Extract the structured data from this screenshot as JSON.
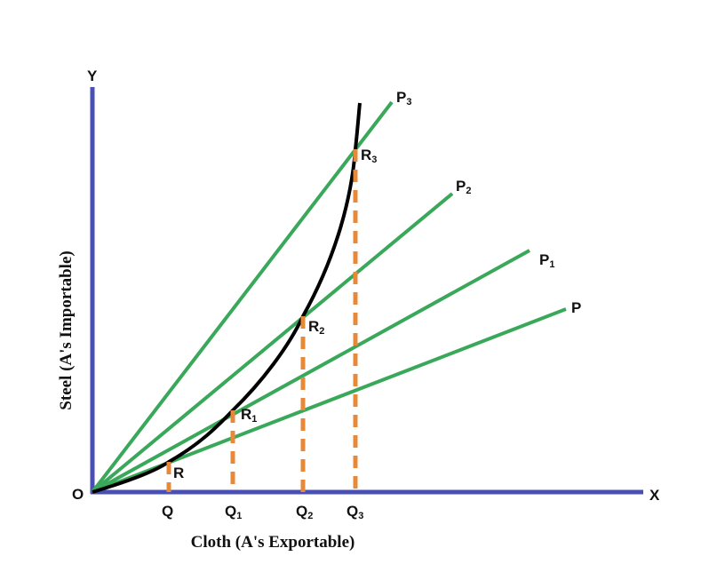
{
  "colors": {
    "axis": "#4a4fb5",
    "price_line": "#3aa85a",
    "offer_curve": "#000000",
    "dashed": "#e8893a"
  },
  "axes": {
    "origin": "O",
    "x_letter": "X",
    "y_letter": "Y",
    "x_title": "Cloth (A's Exportable)",
    "y_title": "Steel (A's Importable)"
  },
  "price_lines": [
    {
      "base": "P3",
      "main": "P",
      "sub": "3"
    },
    {
      "base": "P2",
      "main": "P",
      "sub": "2"
    },
    {
      "base": "P1",
      "main": "P",
      "sub": "1"
    },
    {
      "base": "P",
      "main": "P",
      "sub": ""
    }
  ],
  "points": [
    {
      "main": "R",
      "sub": ""
    },
    {
      "main": "R",
      "sub": "1"
    },
    {
      "main": "R",
      "sub": "2"
    },
    {
      "main": "R",
      "sub": "3"
    }
  ],
  "x_ticks": [
    {
      "main": "Q",
      "sub": ""
    },
    {
      "main": "Q",
      "sub": "1"
    },
    {
      "main": "Q",
      "sub": "2"
    },
    {
      "main": "Q",
      "sub": "3"
    }
  ]
}
